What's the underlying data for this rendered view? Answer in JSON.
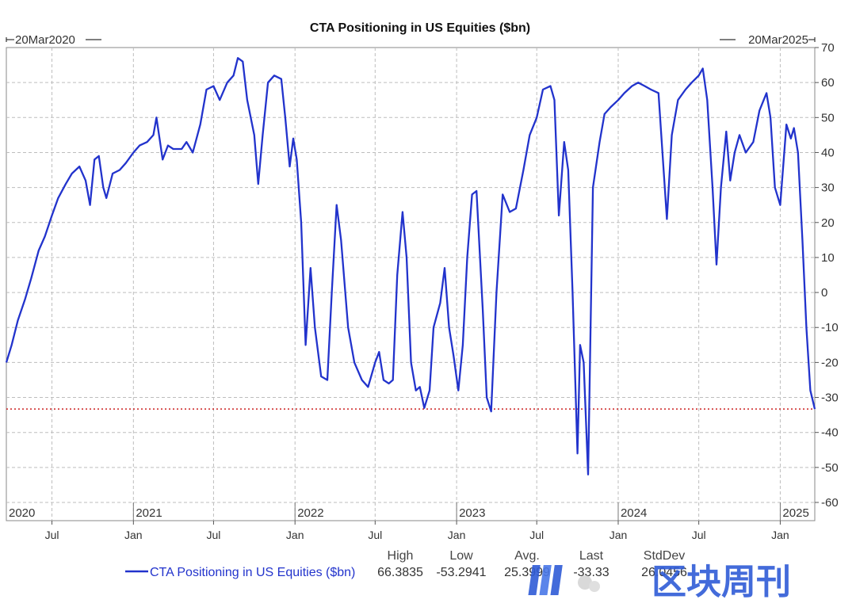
{
  "chart_data": {
    "type": "line",
    "title": "CTA Positioning in US Equities ($bn)",
    "range_start": "20Mar2020",
    "range_end": "20Mar2025",
    "ylim": [
      -60,
      70
    ],
    "y_ticks": [
      70,
      60,
      50,
      40,
      30,
      20,
      10,
      0,
      -10,
      -20,
      -30,
      -40,
      -50,
      -60
    ],
    "y_axis_side": "right",
    "grid": true,
    "year_labels": [
      {
        "label": "2020",
        "date": "2020-03-20"
      },
      {
        "label": "2021",
        "date": "2021-01-01"
      },
      {
        "label": "2022",
        "date": "2022-01-01"
      },
      {
        "label": "2023",
        "date": "2023-01-01"
      },
      {
        "label": "2024",
        "date": "2024-01-01"
      },
      {
        "label": "2025",
        "date": "2025-01-01"
      }
    ],
    "month_ticks": [
      {
        "label": "Jul",
        "date": "2020-07-01"
      },
      {
        "label": "Jan",
        "date": "2021-01-01"
      },
      {
        "label": "Jul",
        "date": "2021-07-01"
      },
      {
        "label": "Jan",
        "date": "2022-01-01"
      },
      {
        "label": "Jul",
        "date": "2022-07-01"
      },
      {
        "label": "Jan",
        "date": "2023-01-01"
      },
      {
        "label": "Jul",
        "date": "2023-07-01"
      },
      {
        "label": "Jan",
        "date": "2024-01-01"
      },
      {
        "label": "Jul",
        "date": "2024-07-01"
      },
      {
        "label": "Jan",
        "date": "2025-01-01"
      }
    ],
    "reference_line": {
      "value": -33.3,
      "color": "#cc2222",
      "style": "dotted"
    },
    "series": [
      {
        "name": "CTA Positioning in US Equities ($bn)",
        "color": "#2233cc",
        "points": [
          [
            "2020-03-20",
            -20
          ],
          [
            "2020-04-01",
            -15
          ],
          [
            "2020-04-15",
            -8
          ],
          [
            "2020-05-01",
            -2
          ],
          [
            "2020-05-15",
            4
          ],
          [
            "2020-06-01",
            12
          ],
          [
            "2020-06-15",
            16
          ],
          [
            "2020-07-01",
            22
          ],
          [
            "2020-07-15",
            27
          ],
          [
            "2020-08-01",
            31
          ],
          [
            "2020-08-15",
            34
          ],
          [
            "2020-09-01",
            36
          ],
          [
            "2020-09-15",
            32
          ],
          [
            "2020-09-25",
            25
          ],
          [
            "2020-10-05",
            38
          ],
          [
            "2020-10-15",
            39
          ],
          [
            "2020-10-25",
            30
          ],
          [
            "2020-11-01",
            27
          ],
          [
            "2020-11-15",
            34
          ],
          [
            "2020-12-01",
            35
          ],
          [
            "2020-12-15",
            37
          ],
          [
            "2021-01-01",
            40
          ],
          [
            "2021-01-15",
            42
          ],
          [
            "2021-02-01",
            43
          ],
          [
            "2021-02-15",
            45
          ],
          [
            "2021-02-22",
            50
          ],
          [
            "2021-03-01",
            44
          ],
          [
            "2021-03-08",
            38
          ],
          [
            "2021-03-20",
            42
          ],
          [
            "2021-04-01",
            41
          ],
          [
            "2021-04-20",
            41
          ],
          [
            "2021-05-01",
            43
          ],
          [
            "2021-05-15",
            40
          ],
          [
            "2021-06-01",
            48
          ],
          [
            "2021-06-15",
            58
          ],
          [
            "2021-07-01",
            59
          ],
          [
            "2021-07-15",
            55
          ],
          [
            "2021-08-01",
            60
          ],
          [
            "2021-08-15",
            62
          ],
          [
            "2021-08-25",
            67
          ],
          [
            "2021-09-05",
            66
          ],
          [
            "2021-09-15",
            55
          ],
          [
            "2021-10-01",
            45
          ],
          [
            "2021-10-10",
            31
          ],
          [
            "2021-10-20",
            45
          ],
          [
            "2021-11-01",
            60
          ],
          [
            "2021-11-15",
            62
          ],
          [
            "2021-12-01",
            61
          ],
          [
            "2021-12-10",
            50
          ],
          [
            "2021-12-20",
            36
          ],
          [
            "2021-12-28",
            44
          ],
          [
            "2022-01-05",
            38
          ],
          [
            "2022-01-15",
            20
          ],
          [
            "2022-01-25",
            -15
          ],
          [
            "2022-02-05",
            7
          ],
          [
            "2022-02-15",
            -10
          ],
          [
            "2022-03-01",
            -24
          ],
          [
            "2022-03-15",
            -25
          ],
          [
            "2022-03-25",
            0
          ],
          [
            "2022-04-05",
            25
          ],
          [
            "2022-04-15",
            15
          ],
          [
            "2022-05-01",
            -10
          ],
          [
            "2022-05-15",
            -20
          ],
          [
            "2022-06-01",
            -25
          ],
          [
            "2022-06-15",
            -27
          ],
          [
            "2022-07-01",
            -20
          ],
          [
            "2022-07-10",
            -17
          ],
          [
            "2022-07-20",
            -25
          ],
          [
            "2022-08-01",
            -26
          ],
          [
            "2022-08-10",
            -25
          ],
          [
            "2022-08-20",
            5
          ],
          [
            "2022-09-01",
            23
          ],
          [
            "2022-09-10",
            10
          ],
          [
            "2022-09-20",
            -20
          ],
          [
            "2022-10-01",
            -28
          ],
          [
            "2022-10-10",
            -27
          ],
          [
            "2022-10-20",
            -33
          ],
          [
            "2022-11-01",
            -28
          ],
          [
            "2022-11-10",
            -10
          ],
          [
            "2022-11-25",
            -3
          ],
          [
            "2022-12-05",
            7
          ],
          [
            "2022-12-15",
            -10
          ],
          [
            "2022-12-25",
            -18
          ],
          [
            "2023-01-05",
            -28
          ],
          [
            "2023-01-15",
            -15
          ],
          [
            "2023-01-25",
            10
          ],
          [
            "2023-02-05",
            28
          ],
          [
            "2023-02-15",
            29
          ],
          [
            "2023-03-01",
            -5
          ],
          [
            "2023-03-10",
            -30
          ],
          [
            "2023-03-20",
            -34
          ],
          [
            "2023-04-01",
            0
          ],
          [
            "2023-04-15",
            28
          ],
          [
            "2023-05-01",
            23
          ],
          [
            "2023-05-15",
            24
          ],
          [
            "2023-06-01",
            35
          ],
          [
            "2023-06-15",
            45
          ],
          [
            "2023-07-01",
            50
          ],
          [
            "2023-07-15",
            58
          ],
          [
            "2023-08-01",
            59
          ],
          [
            "2023-08-10",
            55
          ],
          [
            "2023-08-20",
            22
          ],
          [
            "2023-09-01",
            43
          ],
          [
            "2023-09-10",
            35
          ],
          [
            "2023-09-20",
            0
          ],
          [
            "2023-10-01",
            -46
          ],
          [
            "2023-10-07",
            -15
          ],
          [
            "2023-10-15",
            -20
          ],
          [
            "2023-10-25",
            -52
          ],
          [
            "2023-11-05",
            30
          ],
          [
            "2023-11-20",
            43
          ],
          [
            "2023-12-01",
            51
          ],
          [
            "2023-12-15",
            53
          ],
          [
            "2024-01-01",
            55
          ],
          [
            "2024-01-15",
            57
          ],
          [
            "2024-02-01",
            59
          ],
          [
            "2024-02-15",
            60
          ],
          [
            "2024-03-01",
            59
          ],
          [
            "2024-03-15",
            58
          ],
          [
            "2024-04-01",
            57
          ],
          [
            "2024-04-10",
            40
          ],
          [
            "2024-04-20",
            21
          ],
          [
            "2024-05-01",
            45
          ],
          [
            "2024-05-15",
            55
          ],
          [
            "2024-06-01",
            58
          ],
          [
            "2024-06-15",
            60
          ],
          [
            "2024-07-01",
            62
          ],
          [
            "2024-07-10",
            64
          ],
          [
            "2024-07-20",
            55
          ],
          [
            "2024-08-01",
            30
          ],
          [
            "2024-08-10",
            8
          ],
          [
            "2024-08-20",
            30
          ],
          [
            "2024-09-01",
            46
          ],
          [
            "2024-09-10",
            32
          ],
          [
            "2024-09-20",
            40
          ],
          [
            "2024-10-01",
            45
          ],
          [
            "2024-10-15",
            40
          ],
          [
            "2024-11-01",
            43
          ],
          [
            "2024-11-15",
            52
          ],
          [
            "2024-12-01",
            57
          ],
          [
            "2024-12-10",
            50
          ],
          [
            "2024-12-20",
            30
          ],
          [
            "2025-01-01",
            25
          ],
          [
            "2025-01-15",
            48
          ],
          [
            "2025-01-25",
            44
          ],
          [
            "2025-02-01",
            47
          ],
          [
            "2025-02-10",
            40
          ],
          [
            "2025-02-20",
            15
          ],
          [
            "2025-03-01",
            -10
          ],
          [
            "2025-03-10",
            -28
          ],
          [
            "2025-03-20",
            -33.3
          ]
        ]
      }
    ],
    "stats": {
      "headers": [
        "High",
        "Low",
        "Avg.",
        "Last",
        "StdDev"
      ],
      "values": [
        "66.3835",
        "-53.2941",
        "25.3999",
        "-33.33",
        "26.0456"
      ]
    }
  },
  "watermark": {
    "text": "区块周刊"
  }
}
